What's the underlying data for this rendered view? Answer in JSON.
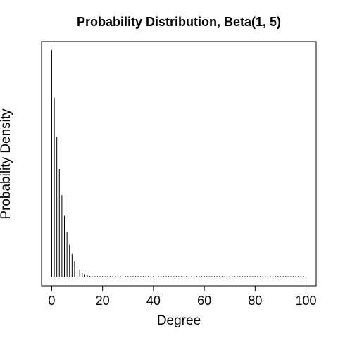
{
  "chart_data": {
    "type": "bar",
    "title": "Probability Distribution, Beta(1, 5)",
    "xlabel": "Degree",
    "ylabel": "Probability Density",
    "xlim": [
      -4,
      104
    ],
    "ylim": [
      0,
      0.168
    ],
    "x_ticks": [
      0,
      20,
      40,
      60,
      80,
      100
    ],
    "x_tick_labels": [
      "0",
      "20",
      "40",
      "60",
      "80",
      "100"
    ],
    "y_ticks_shown": false,
    "grid": false,
    "legend": "none",
    "x": [
      0,
      1,
      2,
      3,
      4,
      5,
      6,
      7,
      8,
      9,
      10,
      11,
      12,
      13,
      14,
      15,
      16,
      17,
      18,
      19,
      20,
      21,
      22,
      23,
      24,
      25,
      26,
      27,
      28,
      29,
      30,
      31,
      32,
      33,
      34,
      35,
      36,
      37,
      38,
      39,
      40,
      41,
      42,
      43,
      44,
      45,
      46,
      47,
      48,
      49,
      50,
      51,
      52,
      53,
      54,
      55,
      56,
      57,
      58,
      59,
      60,
      61,
      62,
      63,
      64,
      65,
      66,
      67,
      68,
      69,
      70,
      71,
      72,
      73,
      74,
      75,
      76,
      77,
      78,
      79,
      80,
      81,
      82,
      83,
      84,
      85,
      86,
      87,
      88,
      89,
      90,
      91,
      92,
      93,
      94,
      95,
      96,
      97,
      98,
      99,
      100
    ],
    "values": [
      0.1625,
      0.1283,
      0.1001,
      0.0771,
      0.0585,
      0.0436,
      0.032,
      0.023,
      0.0162,
      0.0111,
      0.0074,
      0.0048,
      0.003,
      0.0018,
      0.001,
      0.0005,
      0.0003,
      0.0001,
      0.0001,
      0.0,
      0,
      0,
      0,
      0,
      0,
      0,
      0,
      0,
      0,
      0,
      0,
      0,
      0,
      0,
      0,
      0,
      0,
      0,
      0,
      0,
      0,
      0,
      0,
      0,
      0,
      0,
      0,
      0,
      0,
      0,
      0,
      0,
      0,
      0,
      0,
      0,
      0,
      0,
      0,
      0,
      0,
      0,
      0,
      0,
      0,
      0,
      0,
      0,
      0,
      0,
      0,
      0,
      0,
      0,
      0,
      0,
      0,
      0,
      0,
      0,
      0,
      0,
      0,
      0,
      0,
      0,
      0,
      0,
      0,
      0,
      0,
      0,
      0,
      0,
      0,
      0,
      0,
      0,
      0,
      0,
      0
    ]
  }
}
